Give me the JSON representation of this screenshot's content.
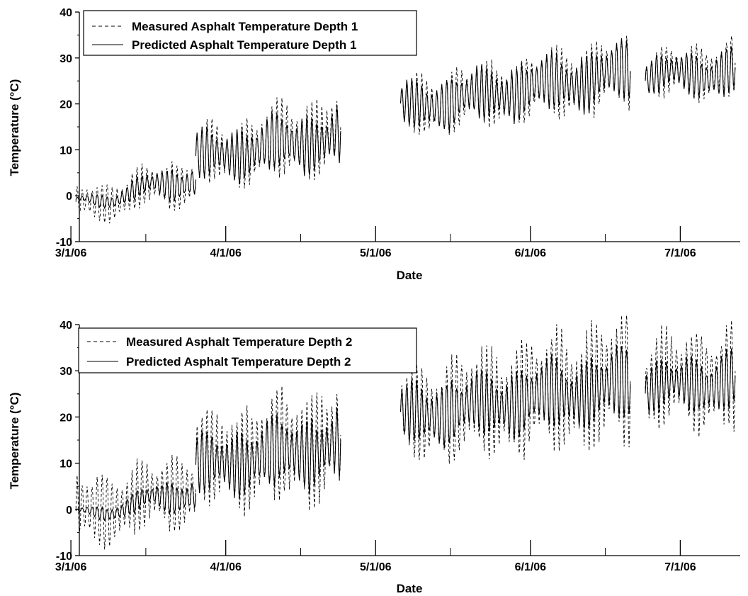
{
  "chart_data": [
    {
      "type": "line",
      "title": "",
      "xlabel": "Date",
      "ylabel": "Temperature (°C)",
      "xlim": [
        "2006-02-27",
        "2006-07-13"
      ],
      "ylim": [
        -10,
        40
      ],
      "yticks": [
        -10,
        0,
        10,
        20,
        30,
        40
      ],
      "xticks": [
        {
          "date": "2006-03-01",
          "label": "3/1/06"
        },
        {
          "date": "2006-04-01",
          "label": "4/1/06"
        },
        {
          "date": "2006-05-01",
          "label": "5/1/06"
        },
        {
          "date": "2006-06-01",
          "label": "6/1/06"
        },
        {
          "date": "2006-07-01",
          "label": "7/1/06"
        }
      ],
      "grid": false,
      "legend_position": "top-left",
      "series": [
        {
          "name": "Measured Asphalt Temperature Depth 1",
          "style": "dashed",
          "segments": [
            {
              "start": "2006-03-02",
              "end": "2006-03-26",
              "mean_start": -2.5,
              "mean_end": 4,
              "amplitude_start": 3,
              "amplitude_end": 4
            },
            {
              "start": "2006-03-26",
              "end": "2006-04-24",
              "mean_start": 8,
              "mean_end": 14,
              "amplitude_start": 5,
              "amplitude_end": 7
            },
            {
              "start": "2006-05-06",
              "end": "2006-06-21",
              "mean_start": 19,
              "mean_end": 27,
              "amplitude_start": 5,
              "amplitude_end": 6
            },
            {
              "start": "2006-06-24",
              "end": "2006-07-12",
              "mean_start": 26,
              "mean_end": 28,
              "amplitude_start": 4,
              "amplitude_end": 5
            }
          ]
        },
        {
          "name": "Predicted Asphalt Temperature Depth 1",
          "style": "solid",
          "segments": [
            {
              "start": "2006-03-02",
              "end": "2006-03-26",
              "mean_start": -2,
              "mean_end": 4,
              "amplitude_start": 0.5,
              "amplitude_end": 3
            },
            {
              "start": "2006-03-26",
              "end": "2006-04-24",
              "mean_start": 8,
              "mean_end": 13,
              "amplitude_start": 4,
              "amplitude_end": 5
            },
            {
              "start": "2006-05-06",
              "end": "2006-06-21",
              "mean_start": 19,
              "mean_end": 27,
              "amplitude_start": 4,
              "amplitude_end": 5
            },
            {
              "start": "2006-06-24",
              "end": "2006-07-12",
              "mean_start": 26,
              "mean_end": 27,
              "amplitude_start": 3,
              "amplitude_end": 4
            }
          ]
        }
      ]
    },
    {
      "type": "line",
      "title": "",
      "xlabel": "Date",
      "ylabel": "Temperature (°C)",
      "xlim": [
        "2006-02-27",
        "2006-07-13"
      ],
      "ylim": [
        -10,
        40
      ],
      "yticks": [
        -10,
        0,
        10,
        20,
        30,
        40
      ],
      "xticks": [
        {
          "date": "2006-03-01",
          "label": "3/1/06"
        },
        {
          "date": "2006-04-01",
          "label": "4/1/06"
        },
        {
          "date": "2006-05-01",
          "label": "5/1/06"
        },
        {
          "date": "2006-06-01",
          "label": "6/1/06"
        },
        {
          "date": "2006-07-01",
          "label": "7/1/06"
        }
      ],
      "grid": false,
      "legend_position": "top-left",
      "series": [
        {
          "name": "Measured Asphalt Temperature Depth 2",
          "style": "dashed",
          "segments": [
            {
              "start": "2006-03-02",
              "end": "2006-03-26",
              "mean_start": -1,
              "mean_end": 5,
              "amplitude_start": 6,
              "amplitude_end": 6
            },
            {
              "start": "2006-03-26",
              "end": "2006-04-24",
              "mean_start": 10,
              "mean_end": 15,
              "amplitude_start": 8,
              "amplitude_end": 10
            },
            {
              "start": "2006-05-06",
              "end": "2006-06-21",
              "mean_start": 20,
              "mean_end": 28,
              "amplitude_start": 8,
              "amplitude_end": 11
            },
            {
              "start": "2006-06-24",
              "end": "2006-07-12",
              "mean_start": 27,
              "mean_end": 29,
              "amplitude_start": 8,
              "amplitude_end": 9
            }
          ]
        },
        {
          "name": "Predicted Asphalt Temperature Depth 2",
          "style": "solid",
          "segments": [
            {
              "start": "2006-03-02",
              "end": "2006-03-26",
              "mean_start": -1.5,
              "mean_end": 4,
              "amplitude_start": 0.5,
              "amplitude_end": 3
            },
            {
              "start": "2006-03-26",
              "end": "2006-04-24",
              "mean_start": 9,
              "mean_end": 14,
              "amplitude_start": 5,
              "amplitude_end": 6
            },
            {
              "start": "2006-05-06",
              "end": "2006-06-21",
              "mean_start": 20,
              "mean_end": 27,
              "amplitude_start": 5,
              "amplitude_end": 6
            },
            {
              "start": "2006-06-24",
              "end": "2006-07-12",
              "mean_start": 26,
              "mean_end": 28,
              "amplitude_start": 4,
              "amplitude_end": 5
            }
          ]
        }
      ]
    }
  ]
}
